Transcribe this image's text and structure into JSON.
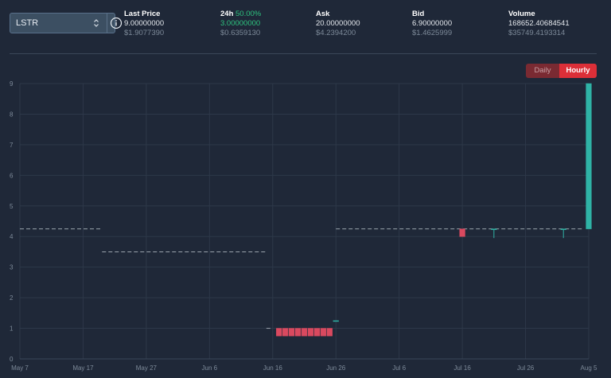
{
  "market": {
    "selected": "LSTR"
  },
  "stats": {
    "last_price": {
      "label": "Last Price",
      "value": "9.00000000",
      "usd": "$1.9077390"
    },
    "change_24h": {
      "label": "24h",
      "percent": "50.00%",
      "value": "3.00000000",
      "usd": "$0.6359130"
    },
    "ask": {
      "label": "Ask",
      "value": "20.00000000",
      "usd": "$4.2394200"
    },
    "bid": {
      "label": "Bid",
      "value": "6.90000000",
      "usd": "$1.4625999"
    },
    "volume": {
      "label": "Volume",
      "value": "168652.40684541",
      "usd": "$35749.4193314"
    }
  },
  "toggle": {
    "daily": "Daily",
    "hourly": "Hourly",
    "active": "Hourly"
  },
  "colors": {
    "up": "#2fb3a6",
    "down": "#d9495f",
    "line": "#9aa3ad",
    "grid": "#2d3849",
    "background": "#1f2838"
  },
  "chart_data": {
    "type": "candlestick",
    "grid": true,
    "x_ticks": [
      "May 7",
      "May 17",
      "May 27",
      "Jun 6",
      "Jun 16",
      "Jun 26",
      "Jul 6",
      "Jul 16",
      "Jul 26",
      "Aug 5"
    ],
    "xlim": [
      "2023-05-07",
      "2023-08-05"
    ],
    "ylim": [
      0,
      9
    ],
    "y_ticks": [
      0,
      1,
      2,
      3,
      4,
      5,
      6,
      7,
      8,
      9
    ],
    "price_segments": [
      {
        "x": [
          "2023-05-07",
          "2023-05-20"
        ],
        "y": 4.25
      },
      {
        "x": [
          "2023-05-20",
          "2023-06-15"
        ],
        "y": 3.5
      },
      {
        "x": [
          "2023-06-15",
          "2023-06-16"
        ],
        "y": 1.0
      },
      {
        "x": [
          "2023-06-26",
          "2023-08-04"
        ],
        "y": 4.25
      }
    ],
    "candles": [
      {
        "date": "2023-06-17",
        "open": 1.0,
        "close": 0.75
      },
      {
        "date": "2023-06-18",
        "open": 1.0,
        "close": 0.75
      },
      {
        "date": "2023-06-19",
        "open": 1.0,
        "close": 0.75
      },
      {
        "date": "2023-06-20",
        "open": 1.0,
        "close": 0.75
      },
      {
        "date": "2023-06-21",
        "open": 1.0,
        "close": 0.75
      },
      {
        "date": "2023-06-22",
        "open": 1.0,
        "close": 0.75
      },
      {
        "date": "2023-06-23",
        "open": 1.0,
        "close": 0.75
      },
      {
        "date": "2023-06-24",
        "open": 1.0,
        "close": 0.75
      },
      {
        "date": "2023-06-25",
        "open": 1.0,
        "close": 0.75
      },
      {
        "date": "2023-06-26",
        "open": 1.25,
        "close": 1.25
      },
      {
        "date": "2023-07-16",
        "open": 4.25,
        "close": 4.0
      },
      {
        "date": "2023-07-21",
        "open": 4.25,
        "close": 4.25,
        "high": 4.25,
        "low": 3.95
      },
      {
        "date": "2023-08-01",
        "open": 4.25,
        "close": 4.25,
        "high": 4.25,
        "low": 3.95
      },
      {
        "date": "2023-08-05",
        "open": 4.25,
        "close": 9.0
      }
    ]
  }
}
